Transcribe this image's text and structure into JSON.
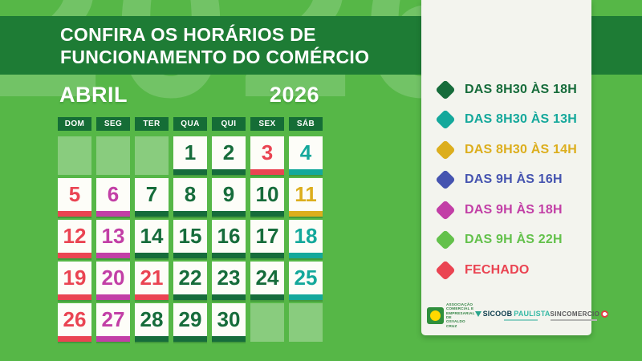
{
  "banner": {
    "line1": "CONFIRA OS HORÁRIOS DE",
    "line2": "FUNCIONAMENTO DO COMÉRCIO"
  },
  "watermark_year": "2026",
  "calendar": {
    "month": "ABRIL",
    "year": "2026",
    "weekdays": [
      "DOM",
      "SEG",
      "TER",
      "QUA",
      "QUI",
      "SEX",
      "SÁB"
    ],
    "cells": [
      {
        "day": "",
        "schedule": "empty"
      },
      {
        "day": "",
        "schedule": "empty"
      },
      {
        "day": "",
        "schedule": "empty"
      },
      {
        "day": "1",
        "schedule": "h0830_18"
      },
      {
        "day": "2",
        "schedule": "h0830_18"
      },
      {
        "day": "3",
        "schedule": "closed"
      },
      {
        "day": "4",
        "schedule": "h0830_13"
      },
      {
        "day": "5",
        "schedule": "closed"
      },
      {
        "day": "6",
        "schedule": "h09_18"
      },
      {
        "day": "7",
        "schedule": "h0830_18"
      },
      {
        "day": "8",
        "schedule": "h0830_18"
      },
      {
        "day": "9",
        "schedule": "h0830_18"
      },
      {
        "day": "10",
        "schedule": "h0830_18"
      },
      {
        "day": "11",
        "schedule": "h0830_14"
      },
      {
        "day": "12",
        "schedule": "closed"
      },
      {
        "day": "13",
        "schedule": "h09_18"
      },
      {
        "day": "14",
        "schedule": "h0830_18"
      },
      {
        "day": "15",
        "schedule": "h0830_18"
      },
      {
        "day": "16",
        "schedule": "h0830_18"
      },
      {
        "day": "17",
        "schedule": "h0830_18"
      },
      {
        "day": "18",
        "schedule": "h0830_13"
      },
      {
        "day": "19",
        "schedule": "closed"
      },
      {
        "day": "20",
        "schedule": "h09_18"
      },
      {
        "day": "21",
        "schedule": "closed"
      },
      {
        "day": "22",
        "schedule": "h0830_18"
      },
      {
        "day": "23",
        "schedule": "h0830_18"
      },
      {
        "day": "24",
        "schedule": "h0830_18"
      },
      {
        "day": "25",
        "schedule": "h0830_13"
      },
      {
        "day": "26",
        "schedule": "closed"
      },
      {
        "day": "27",
        "schedule": "h09_18"
      },
      {
        "day": "28",
        "schedule": "h0830_18"
      },
      {
        "day": "29",
        "schedule": "h0830_18"
      },
      {
        "day": "30",
        "schedule": "h0830_18"
      },
      {
        "day": "",
        "schedule": "empty"
      },
      {
        "day": "",
        "schedule": "empty"
      }
    ]
  },
  "legend": {
    "items": [
      {
        "key": "h0830_18",
        "label": "DAS 8H30 ÀS 18H"
      },
      {
        "key": "h0830_13",
        "label": "DAS 8H30 ÀS 13H"
      },
      {
        "key": "h0830_14",
        "label": "DAS 8H30 ÀS 14H"
      },
      {
        "key": "h09_16",
        "label": "DAS 9H ÀS 16H"
      },
      {
        "key": "h09_18",
        "label": "DAS 9H ÀS 18H"
      },
      {
        "key": "h09_22",
        "label": "DAS 9H ÀS 22H"
      },
      {
        "key": "closed",
        "label": "FECHADO"
      }
    ]
  },
  "schedule_colors": {
    "h0830_18": "#166c3b",
    "h0830_13": "#14a89b",
    "h0830_14": "#dcae1d",
    "h09_16": "#4554b0",
    "h09_18": "#c23fa6",
    "h09_22": "#63c14b",
    "closed": "#ea4452"
  },
  "theme_colors": {
    "background": "#56b747",
    "banner": "#1e7c35",
    "weekday_box": "#156d36",
    "card": "#f3f4ee"
  },
  "logos": {
    "ace": {
      "lines": [
        "ASSOCIAÇÃO",
        "COMERCIAL E",
        "EMPRESARIAL DE",
        "OSVALDO CRUZ"
      ]
    },
    "sicoob": {
      "part1": "SICOOB",
      "part2": "PAULISTA"
    },
    "sincomercio": {
      "text": "SINCOMERCIO"
    }
  }
}
